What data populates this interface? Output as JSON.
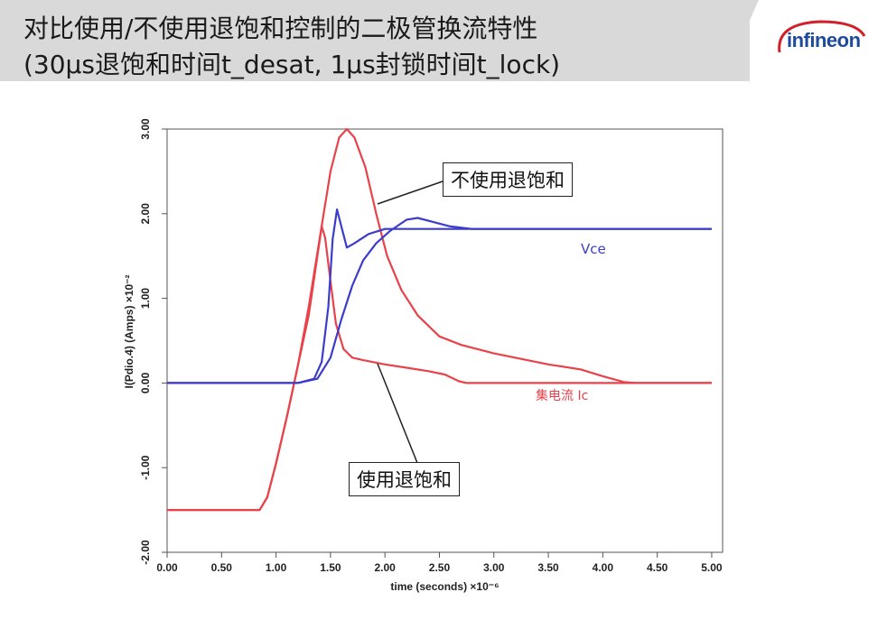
{
  "header": {
    "title_line1": "对比使用/不使用退饱和控制的二极管换流特性",
    "title_line2": "(30μs退饱和时间t_desat, 1μs封锁时间t_lock)",
    "logo_text": "infineon"
  },
  "callouts": {
    "without_desat": "不使用退饱和",
    "with_desat": "使用退饱和"
  },
  "colors": {
    "red_series": "#e8424a",
    "blue_series": "#3c3ccc",
    "header_bg": "#d9d9d9",
    "logo_blue": "#1d4a9a",
    "logo_red": "#d0202a"
  },
  "chart_data": {
    "type": "line",
    "xlabel": "time (seconds) ×10⁻⁶",
    "ylabel": "I(Pdio.4) (Amps) ×10⁻²",
    "xlim": [
      0.0,
      5.1
    ],
    "ylim": [
      -2.0,
      3.0
    ],
    "x_ticks": [
      "0.00",
      "0.50",
      "1.00",
      "1.50",
      "2.00",
      "2.50",
      "3.00",
      "3.50",
      "4.00",
      "4.50",
      "5.00"
    ],
    "y_ticks": [
      "-2.00",
      "-1.00",
      "0.00",
      "1.00",
      "2.00",
      "3.00"
    ],
    "grid": false,
    "annotations": [
      {
        "text": "Vce",
        "color": "#3c3ccc"
      },
      {
        "text": "集电流 Ic",
        "color": "#e8424a"
      }
    ],
    "series": [
      {
        "color": "#e8424a",
        "points": [
          [
            0.0,
            -1.5
          ],
          [
            0.5,
            -1.5
          ],
          [
            0.85,
            -1.5
          ],
          [
            0.92,
            -1.35
          ],
          [
            1.0,
            -0.95
          ],
          [
            1.1,
            -0.4
          ],
          [
            1.2,
            0.2
          ],
          [
            1.3,
            0.8
          ],
          [
            1.38,
            1.5
          ],
          [
            1.42,
            1.85
          ],
          [
            1.45,
            1.72
          ],
          [
            1.5,
            1.2
          ],
          [
            1.55,
            0.7
          ],
          [
            1.62,
            0.4
          ],
          [
            1.7,
            0.3
          ],
          [
            1.8,
            0.27
          ],
          [
            2.0,
            0.22
          ],
          [
            2.2,
            0.18
          ],
          [
            2.4,
            0.14
          ],
          [
            2.55,
            0.1
          ],
          [
            2.68,
            0.02
          ],
          [
            2.75,
            0.0
          ],
          [
            3.0,
            0.0
          ],
          [
            4.0,
            0.0
          ],
          [
            5.0,
            0.0
          ]
        ]
      },
      {
        "color": "#e8424a",
        "points": [
          [
            0.0,
            -1.5
          ],
          [
            0.5,
            -1.5
          ],
          [
            0.85,
            -1.5
          ],
          [
            0.92,
            -1.35
          ],
          [
            1.0,
            -0.95
          ],
          [
            1.1,
            -0.4
          ],
          [
            1.2,
            0.2
          ],
          [
            1.3,
            0.9
          ],
          [
            1.4,
            1.7
          ],
          [
            1.5,
            2.5
          ],
          [
            1.58,
            2.9
          ],
          [
            1.65,
            3.0
          ],
          [
            1.72,
            2.9
          ],
          [
            1.82,
            2.55
          ],
          [
            1.92,
            2.0
          ],
          [
            2.02,
            1.5
          ],
          [
            2.15,
            1.1
          ],
          [
            2.3,
            0.8
          ],
          [
            2.5,
            0.55
          ],
          [
            2.7,
            0.45
          ],
          [
            3.0,
            0.35
          ],
          [
            3.5,
            0.22
          ],
          [
            3.8,
            0.16
          ],
          [
            4.0,
            0.08
          ],
          [
            4.2,
            0.01
          ],
          [
            4.3,
            0.0
          ],
          [
            5.0,
            0.0
          ]
        ]
      },
      {
        "color": "#3c3ccc",
        "points": [
          [
            0.0,
            0.0
          ],
          [
            1.0,
            0.0
          ],
          [
            1.2,
            0.0
          ],
          [
            1.35,
            0.05
          ],
          [
            1.42,
            0.25
          ],
          [
            1.48,
            0.9
          ],
          [
            1.52,
            1.7
          ],
          [
            1.56,
            2.05
          ],
          [
            1.6,
            1.85
          ],
          [
            1.65,
            1.6
          ],
          [
            1.72,
            1.65
          ],
          [
            1.85,
            1.76
          ],
          [
            2.0,
            1.82
          ],
          [
            2.5,
            1.82
          ],
          [
            5.0,
            1.82
          ]
        ]
      },
      {
        "color": "#3c3ccc",
        "points": [
          [
            0.0,
            0.0
          ],
          [
            1.0,
            0.0
          ],
          [
            1.2,
            0.0
          ],
          [
            1.38,
            0.05
          ],
          [
            1.5,
            0.3
          ],
          [
            1.6,
            0.75
          ],
          [
            1.7,
            1.15
          ],
          [
            1.8,
            1.45
          ],
          [
            1.92,
            1.65
          ],
          [
            2.05,
            1.8
          ],
          [
            2.2,
            1.93
          ],
          [
            2.3,
            1.95
          ],
          [
            2.45,
            1.9
          ],
          [
            2.6,
            1.85
          ],
          [
            2.8,
            1.82
          ],
          [
            5.0,
            1.82
          ]
        ]
      }
    ]
  }
}
